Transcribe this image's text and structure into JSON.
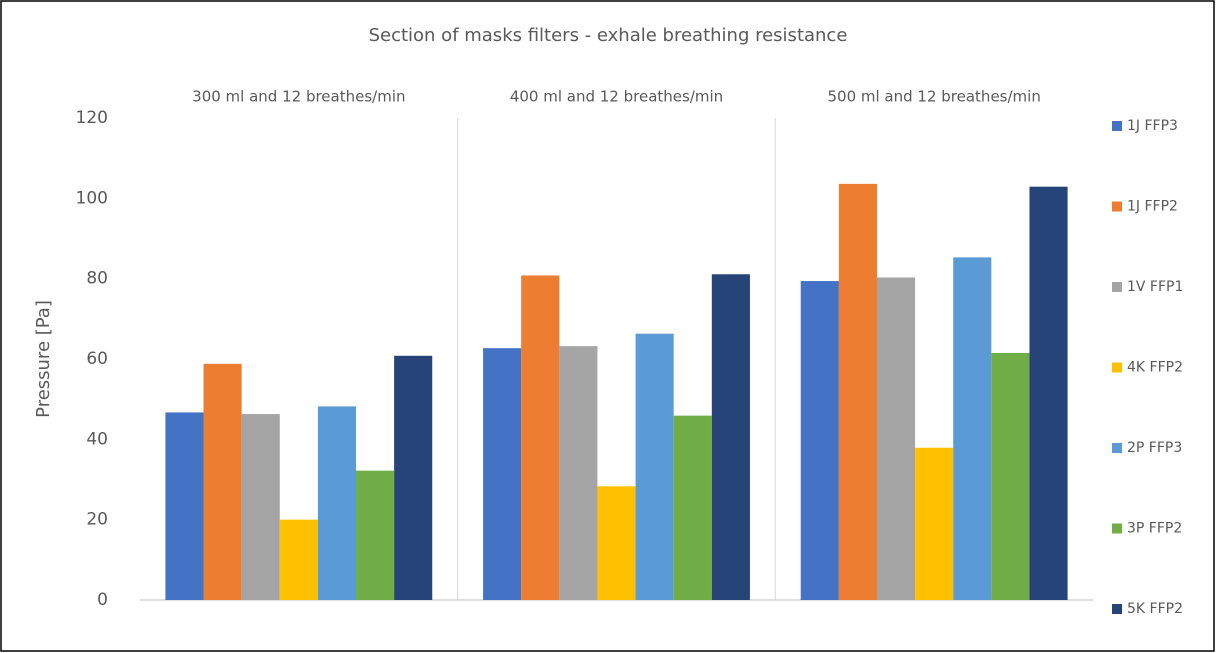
{
  "chart_data": {
    "type": "bar",
    "title": "Section of masks filters - exhale breathing resistance",
    "y_label": "Pressure [Pa]",
    "categories": [
      "300 ml and 12 breathes/min",
      "400 ml and 12 breathes/min",
      "500 ml and 12 breathes/min"
    ],
    "series": [
      {
        "name": "1J FFP3",
        "color": "#4472c4",
        "values": [
          46.7,
          62.7,
          79.4
        ]
      },
      {
        "name": "1J FFP2",
        "color": "#ed7d31",
        "values": [
          58.8,
          80.8,
          103.6
        ]
      },
      {
        "name": "1V FFP1",
        "color": "#a5a5a5",
        "values": [
          46.3,
          63.2,
          80.3
        ]
      },
      {
        "name": "4K FFP2",
        "color": "#ffc000",
        "values": [
          20.0,
          28.3,
          37.9
        ]
      },
      {
        "name": "2P FFP3",
        "color": "#5b9bd5",
        "values": [
          48.2,
          66.3,
          85.3
        ]
      },
      {
        "name": "3P FFP2",
        "color": "#70ad47",
        "values": [
          32.2,
          45.9,
          61.5
        ]
      },
      {
        "name": "5K FFP2",
        "color": "#264478",
        "values": [
          60.8,
          81.1,
          102.9
        ]
      }
    ],
    "ylim": [
      0,
      120
    ],
    "yticks": [
      0,
      20,
      40,
      60,
      80,
      100,
      120
    ],
    "grid": false,
    "legend": "right"
  }
}
